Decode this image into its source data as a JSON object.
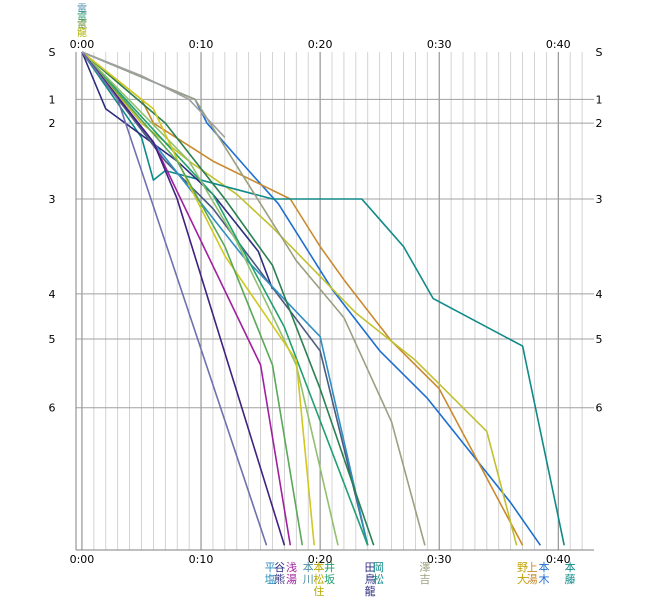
{
  "chart_data": {
    "type": "line",
    "x_tick_labels": [
      "0:00",
      "0:10",
      "0:20",
      "0:30",
      "0:40"
    ],
    "x_ticks_minutes": [
      0,
      10,
      20,
      30,
      40
    ],
    "xlim_minutes": [
      -0.5,
      43
    ],
    "station_labels": [
      {
        "label": "S",
        "km": 0
      },
      {
        "label": "1",
        "km": 1.0
      },
      {
        "label": "2",
        "km": 1.5
      },
      {
        "label": "3",
        "km": 3.1
      },
      {
        "label": "4",
        "km": 5.1
      },
      {
        "label": "5",
        "km": 6.05
      },
      {
        "label": "6",
        "km": 7.5
      }
    ],
    "ylim_km": [
      0,
      10.5
    ],
    "top_legend": [
      {
        "text": "電",
        "color": "#4f8fa8"
      },
      {
        "text": "電",
        "color": "#3aa37c"
      },
      {
        "text": "電",
        "color": "#6b8f3a"
      },
      {
        "text": "龍",
        "color": "#b0b400"
      }
    ],
    "series": [
      {
        "color": "#1e6fd0",
        "points": [
          [
            0,
            0
          ],
          [
            9.5,
            1.0
          ],
          [
            10.5,
            1.5
          ],
          [
            14,
            2.5
          ],
          [
            16.5,
            3.2
          ],
          [
            19,
            4.2
          ],
          [
            21,
            5.0
          ],
          [
            25,
            6.3
          ],
          [
            29,
            7.3
          ],
          [
            36,
            9.5
          ],
          [
            38.5,
            10.4
          ]
        ]
      },
      {
        "color": "#c98a2e",
        "points": [
          [
            0,
            0
          ],
          [
            5,
            1.0
          ],
          [
            6,
            1.5
          ],
          [
            11,
            2.3
          ],
          [
            17.5,
            3.1
          ],
          [
            20,
            4.1
          ],
          [
            22,
            4.8
          ],
          [
            26,
            6.1
          ],
          [
            30,
            7.1
          ],
          [
            37,
            10.4
          ]
        ]
      },
      {
        "color": "#c0c030",
        "points": [
          [
            0,
            0
          ],
          [
            5,
            1.5
          ],
          [
            9,
            2.3
          ],
          [
            13,
            3.0
          ],
          [
            16,
            3.7
          ],
          [
            23,
            5.5
          ],
          [
            28,
            6.5
          ],
          [
            34,
            8.0
          ],
          [
            36.5,
            10.4
          ]
        ]
      },
      {
        "color": "#108a88",
        "points": [
          [
            0,
            0
          ],
          [
            5,
            1.8
          ],
          [
            6,
            2.7
          ],
          [
            7,
            2.5
          ],
          [
            16,
            3.1
          ],
          [
            23.5,
            3.1
          ],
          [
            27,
            4.1
          ],
          [
            29.5,
            5.2
          ],
          [
            37,
            6.2
          ],
          [
            40.5,
            10.4
          ]
        ]
      },
      {
        "color": "#9aa080",
        "points": [
          [
            0,
            0
          ],
          [
            9.5,
            1.0
          ],
          [
            14.5,
            3.0
          ],
          [
            18,
            4.4
          ],
          [
            20,
            5.0
          ],
          [
            22,
            5.6
          ],
          [
            26,
            7.8
          ],
          [
            28.8,
            10.4
          ]
        ]
      },
      {
        "color": "#2d2d80",
        "points": [
          [
            0,
            0
          ],
          [
            2,
            1.2
          ],
          [
            8,
            2.3
          ],
          [
            11,
            3.0
          ],
          [
            14.8,
            4.2
          ],
          [
            16,
            5.0
          ]
        ]
      },
      {
        "color": "#4a5a80",
        "points": [
          [
            0,
            0
          ],
          [
            7,
            2.3
          ],
          [
            11,
            3.3
          ],
          [
            17,
            5.3
          ],
          [
            20,
            6.3
          ],
          [
            24,
            10.4
          ]
        ]
      },
      {
        "color": "#2f8fc0",
        "points": [
          [
            0,
            0
          ],
          [
            13.5,
            4.3
          ],
          [
            20,
            6.0
          ],
          [
            24,
            10.4
          ]
        ]
      },
      {
        "color": "#20a070",
        "points": [
          [
            0,
            0
          ],
          [
            11,
            3.0
          ],
          [
            17,
            5.8
          ],
          [
            24,
            10.4
          ]
        ]
      },
      {
        "color": "#2a8050",
        "points": [
          [
            0,
            0
          ],
          [
            7,
            1.5
          ],
          [
            12,
            3.1
          ],
          [
            16,
            4.5
          ],
          [
            20,
            7.1
          ],
          [
            24.5,
            10.4
          ]
        ]
      },
      {
        "color": "#90c070",
        "points": [
          [
            0,
            0
          ],
          [
            9,
            2.3
          ],
          [
            13,
            4.0
          ],
          [
            18,
            6.6
          ],
          [
            21.5,
            10.4
          ]
        ]
      },
      {
        "color": "#d0c820",
        "points": [
          [
            0,
            0
          ],
          [
            6,
            1.2
          ],
          [
            9,
            2.8
          ],
          [
            12,
            4.3
          ],
          [
            18,
            6.5
          ],
          [
            19.5,
            10.4
          ]
        ]
      },
      {
        "color": "#5aa858",
        "points": [
          [
            0,
            0
          ],
          [
            8,
            2.3
          ],
          [
            12,
            4.1
          ],
          [
            16,
            6.6
          ],
          [
            18.5,
            10.4
          ]
        ]
      },
      {
        "color": "#a020a0",
        "points": [
          [
            0,
            0
          ],
          [
            6,
            1.9
          ],
          [
            15,
            6.6
          ],
          [
            17.5,
            10.4
          ]
        ]
      },
      {
        "color": "#402080",
        "points": [
          [
            0,
            0
          ],
          [
            6,
            1.9
          ],
          [
            8,
            3.1
          ],
          [
            17,
            10.4
          ]
        ]
      },
      {
        "color": "#7070b0",
        "points": [
          [
            0,
            0
          ],
          [
            3,
            1.0
          ],
          [
            15.5,
            10.4
          ]
        ]
      },
      {
        "color": "#a0a0a0",
        "points": [
          [
            0,
            0
          ],
          [
            5,
            0.5
          ],
          [
            9,
            1.0
          ],
          [
            12,
            1.8
          ]
        ]
      }
    ],
    "bottom_labels": [
      {
        "text": [
          "平",
          "塩"
        ],
        "color": "#2f8fc0",
        "minute": 15.8
      },
      {
        "text": [
          "谷",
          "熊"
        ],
        "color": "#2d2d80",
        "minute": 16.6
      },
      {
        "text": [
          "浅",
          "湯"
        ],
        "color": "#a020a0",
        "minute": 17.6
      },
      {
        "text": [
          "本",
          "川"
        ],
        "color": "#4f8f9f",
        "minute": 19.0
      },
      {
        "text": [
          "本",
          "松",
          "住"
        ],
        "color": "#b8a800",
        "minute": 19.9
      },
      {
        "text": [
          "井",
          "坂"
        ],
        "color": "#20a070",
        "minute": 20.8
      },
      {
        "text": [
          "田",
          "鳥",
          "龍"
        ],
        "color": "#2d2d80",
        "minute": 24.2
      },
      {
        "text": [
          "岡",
          "松"
        ],
        "color": "#108a88",
        "minute": 24.9
      },
      {
        "text": [
          "澤",
          "吉"
        ],
        "color": "#9aa080",
        "minute": 28.8
      },
      {
        "text": [
          "野",
          "大"
        ],
        "color": "#c0a000",
        "minute": 37.0
      },
      {
        "text": [
          "上",
          "湯"
        ],
        "color": "#c98a2e",
        "minute": 37.8
      },
      {
        "text": [
          "本",
          "木"
        ],
        "color": "#1e6fd0",
        "minute": 38.8
      },
      {
        "text": [
          "本",
          "藤"
        ],
        "color": "#108a88",
        "minute": 41.0
      }
    ]
  }
}
